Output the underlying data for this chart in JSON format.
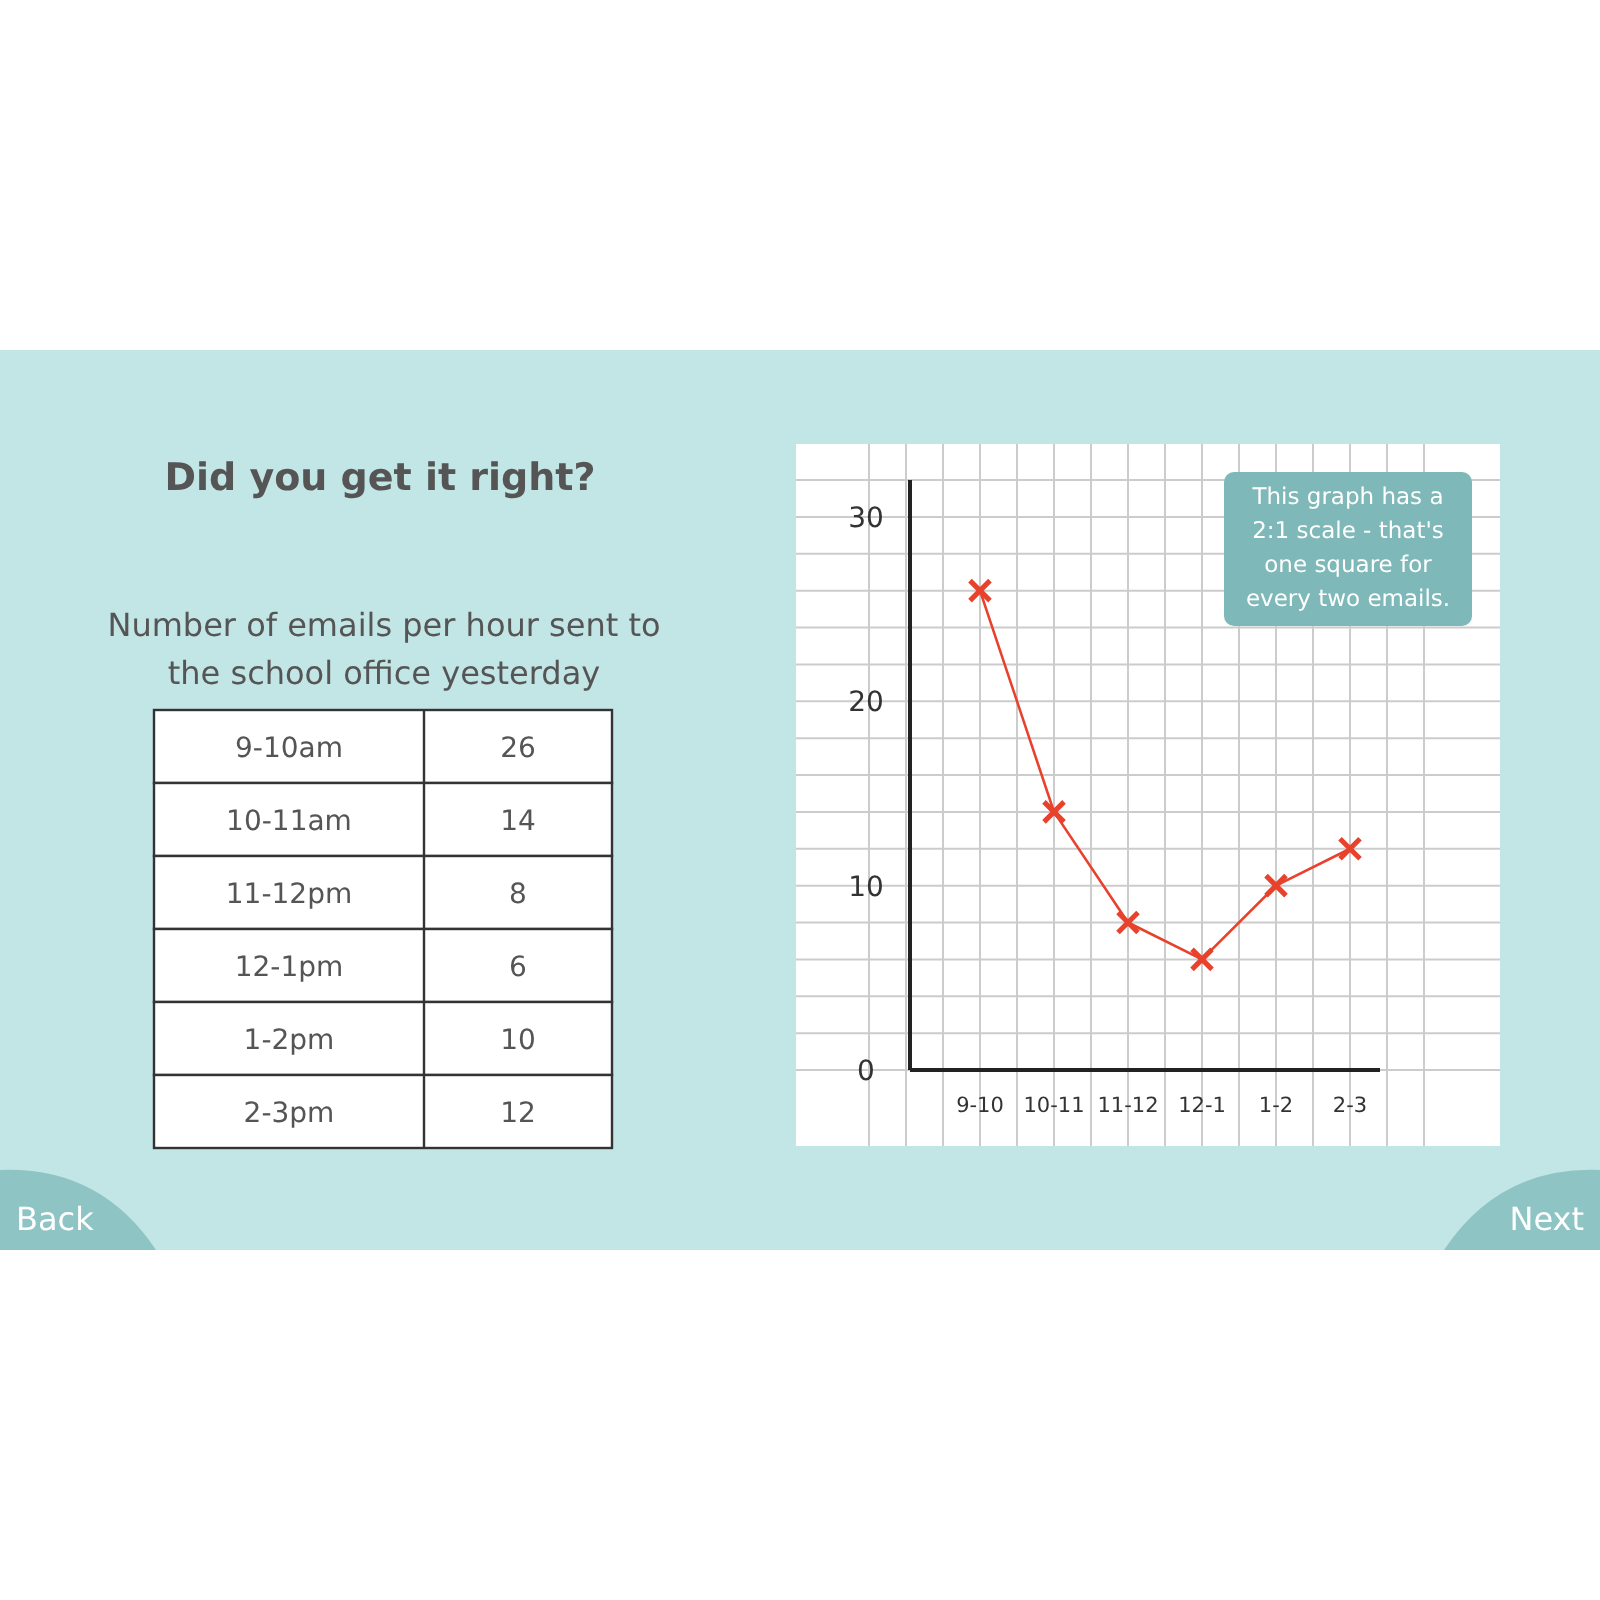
{
  "chart_data": [
    {
      "type": "other",
      "title": "Did you get it right?",
      "subtitle": "Number of emails per hour sent to the school office yesterday",
      "categories": [
        "9-10am",
        "10-11am",
        "11-12pm",
        "12-1pm",
        "1-2pm",
        "2-3pm"
      ],
      "values": [
        26,
        14,
        8,
        6,
        10,
        12
      ],
      "data_labels": true,
      "annotations": [
        "Back",
        "Next"
      ]
    },
    {
      "type": "line",
      "categories": [
        "9-10",
        "10-11",
        "11-12",
        "12-1",
        "1-2",
        "2-3"
      ],
      "values": [
        26,
        14,
        8,
        6,
        10,
        12
      ],
      "color": "#e8412c",
      "marker": "cross",
      "ylim": [
        0,
        32
      ],
      "yticks": [
        0,
        {
          "value": 2,
          "label": null
        },
        {
          "value": 4,
          "label": null
        },
        {
          "value": 6,
          "label": null
        },
        {
          "value": 8,
          "label": null
        },
        10,
        {
          "value": 12,
          "label": null
        },
        {
          "value": 14,
          "label": null
        },
        {
          "value": 16,
          "label": null
        },
        {
          "value": 18,
          "label": null
        },
        20,
        {
          "value": 22,
          "label": null
        },
        {
          "value": 24,
          "label": null
        },
        {
          "value": 26,
          "label": null
        },
        {
          "value": 28,
          "label": null
        },
        30,
        {
          "value": 32,
          "label": null
        }
      ],
      "grid": true,
      "annotations": [
        "This graph has a 2:1 scale - that's one square for every two emails."
      ]
    }
  ]
}
